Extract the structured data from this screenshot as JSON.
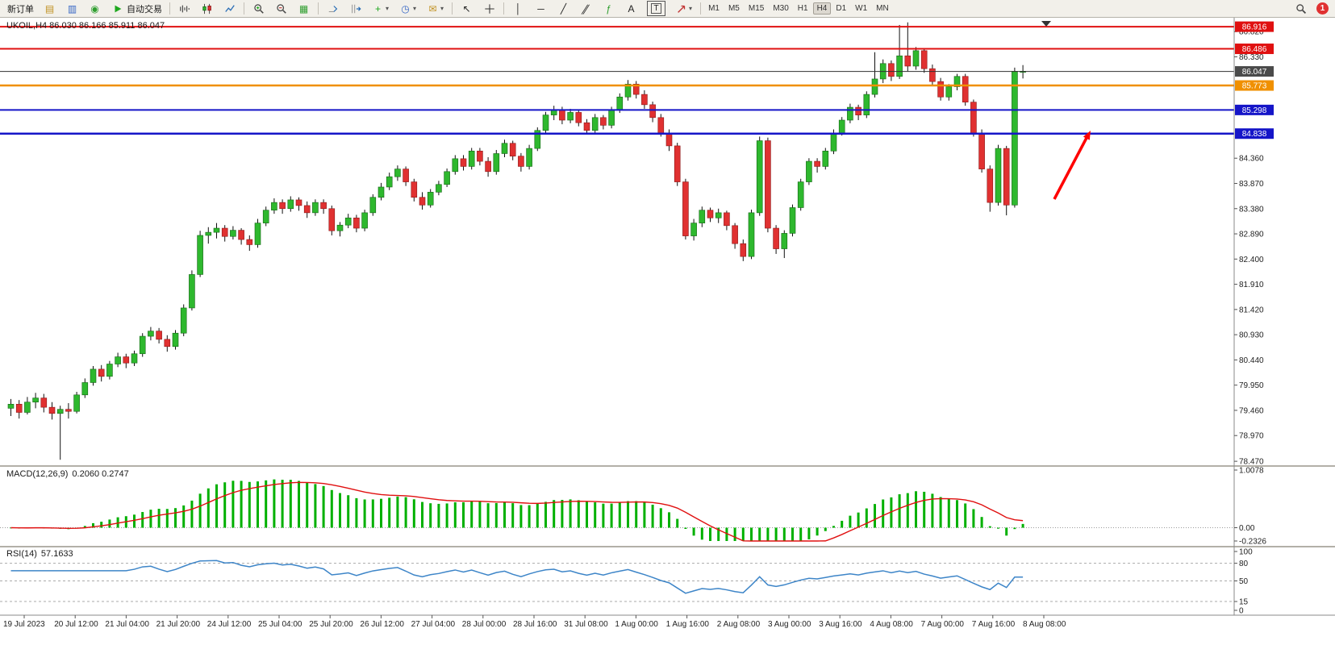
{
  "toolbar": {
    "items": [
      {
        "type": "button",
        "name": "new-order-button",
        "label": "新订单"
      },
      {
        "type": "glyph",
        "name": "open-chart-icon",
        "glyph": "▤",
        "color": "#c09020"
      },
      {
        "type": "glyph",
        "name": "market-watch-icon",
        "glyph": "▥",
        "color": "#3565c5"
      },
      {
        "type": "glyph",
        "name": "navigator-icon",
        "glyph": "◉",
        "color": "#2f9e2f"
      },
      {
        "type": "button",
        "name": "auto-trading-button",
        "label": "自动交易",
        "icon": "play"
      },
      {
        "type": "sep"
      },
      {
        "type": "svg",
        "name": "bar-chart-icon",
        "icon": "bars"
      },
      {
        "type": "svg",
        "name": "candlestick-chart-icon",
        "icon": "candles"
      },
      {
        "type": "svg",
        "name": "line-chart-icon",
        "icon": "linechart"
      },
      {
        "type": "sep"
      },
      {
        "type": "svg",
        "name": "zoom-in-icon",
        "icon": "zoomin"
      },
      {
        "type": "svg",
        "name": "zoom-out-icon",
        "icon": "zoomout"
      },
      {
        "type": "glyph",
        "name": "tile-windows-icon",
        "glyph": "▦",
        "color": "#2f9e2f"
      },
      {
        "type": "sep"
      },
      {
        "type": "svg",
        "name": "auto-scroll-icon",
        "icon": "autoscroll"
      },
      {
        "type": "svg",
        "name": "chart-shift-icon",
        "icon": "chartshift"
      },
      {
        "type": "glyph",
        "name": "add-indicator-icon",
        "glyph": "+",
        "color": "#1fa81f",
        "caret": true
      },
      {
        "type": "glyph",
        "name": "period-icon",
        "glyph": "◷",
        "color": "#3565c5",
        "caret": true
      },
      {
        "type": "glyph",
        "name": "template-icon",
        "glyph": "✉",
        "color": "#c09020",
        "caret": true
      },
      {
        "type": "sep"
      },
      {
        "type": "glyph",
        "name": "cursor-icon",
        "glyph": "↖",
        "color": "#222222"
      },
      {
        "type": "svg",
        "name": "crosshair-icon",
        "icon": "crosshair"
      },
      {
        "type": "sep"
      },
      {
        "type": "glyph",
        "name": "vertical-line-icon",
        "glyph": "│",
        "color": "#222222"
      },
      {
        "type": "glyph",
        "name": "horizontal-line-icon",
        "glyph": "─",
        "color": "#222222"
      },
      {
        "type": "glyph",
        "name": "trendline-icon",
        "glyph": "╱",
        "color": "#222222"
      },
      {
        "type": "glyph",
        "name": "channel-icon",
        "glyph": "∥",
        "color": "#222222"
      },
      {
        "type": "glyph",
        "name": "fibonacci-icon",
        "glyph": "ƒ",
        "color": "#2f9e2f"
      },
      {
        "type": "glyph",
        "name": "text-icon",
        "glyph": "A",
        "color": "#222222"
      },
      {
        "type": "label-box",
        "name": "label-icon",
        "glyph": "T",
        "color": "#222222"
      },
      {
        "type": "svg",
        "name": "arrows-tool-icon",
        "icon": "arrowtool",
        "caret": true
      },
      {
        "type": "sep"
      },
      {
        "type": "timeframes"
      },
      {
        "type": "spacer"
      },
      {
        "type": "svg",
        "name": "search-icon",
        "icon": "search"
      },
      {
        "type": "badge",
        "name": "notification-badge",
        "label": "1",
        "color": "#e03131"
      }
    ],
    "timeframes": [
      "M1",
      "M5",
      "M15",
      "M30",
      "H1",
      "H4",
      "D1",
      "W1",
      "MN"
    ],
    "active_timeframe": "H4"
  },
  "chart": {
    "title": "UKOIL,H4 86.030 86.166 85.911 86.047"
  },
  "panels": {
    "macd": {
      "name": "MACD(12,26,9)",
      "values": "0.2060 0.2747"
    },
    "rsi": {
      "name": "RSI(14)",
      "value": "57.1633"
    }
  },
  "chart_data": {
    "type": "candlestick",
    "symbol": "UKOIL",
    "timeframe": "H4",
    "ohlc_current": {
      "open": 86.03,
      "high": 86.166,
      "low": 85.911,
      "close": 86.047
    },
    "y_ticks": [
      "86.820",
      "86.330",
      "84.360",
      "83.870",
      "83.380",
      "82.890",
      "82.400",
      "81.910",
      "81.420",
      "80.930",
      "80.440",
      "79.950",
      "79.460",
      "78.970",
      "78.470"
    ],
    "hlines": [
      {
        "price": 86.916,
        "color": "#e01010",
        "width": 2,
        "badge": "#e01010"
      },
      {
        "price": 86.486,
        "color": "#e01010",
        "width": 2,
        "badge": "#e01010"
      },
      {
        "price": 86.047,
        "color": "#303030",
        "width": 1,
        "badge": "#4a4a4a"
      },
      {
        "price": 85.773,
        "color": "#f09000",
        "width": 2.5,
        "badge": "#f09000"
      },
      {
        "price": 85.298,
        "color": "#1515c8",
        "width": 2,
        "badge": "#1515c8"
      },
      {
        "price": 84.838,
        "color": "#1515c8",
        "width": 2.5,
        "badge": "#1515c8"
      }
    ],
    "x_labels": [
      "19 Jul 2023",
      "20 Jul 12:00",
      "21 Jul 04:00",
      "21 Jul 20:00",
      "24 Jul 12:00",
      "25 Jul 04:00",
      "25 Jul 20:00",
      "26 Jul 12:00",
      "27 Jul 04:00",
      "28 Jul 00:00",
      "28 Jul 16:00",
      "31 Jul 08:00",
      "1 Aug 00:00",
      "1 Aug 16:00",
      "2 Aug 08:00",
      "3 Aug 00:00",
      "3 Aug 16:00",
      "4 Aug 08:00",
      "7 Aug 00:00",
      "7 Aug 16:00",
      "8 Aug 08:00"
    ],
    "candles": [
      [
        79.5,
        79.68,
        79.35,
        79.58
      ],
      [
        79.58,
        79.66,
        79.3,
        79.42
      ],
      [
        79.42,
        79.72,
        79.38,
        79.62
      ],
      [
        79.62,
        79.8,
        79.5,
        79.7
      ],
      [
        79.7,
        79.78,
        79.42,
        79.52
      ],
      [
        79.52,
        79.62,
        79.28,
        79.4
      ],
      [
        79.4,
        79.55,
        78.5,
        79.48
      ],
      [
        79.48,
        79.6,
        79.3,
        79.44
      ],
      [
        79.44,
        79.82,
        79.4,
        79.76
      ],
      [
        79.76,
        80.08,
        79.7,
        80.0
      ],
      [
        80.0,
        80.32,
        79.94,
        80.26
      ],
      [
        80.26,
        80.34,
        80.02,
        80.12
      ],
      [
        80.12,
        80.42,
        80.06,
        80.36
      ],
      [
        80.36,
        80.58,
        80.3,
        80.5
      ],
      [
        80.5,
        80.56,
        80.28,
        80.38
      ],
      [
        80.38,
        80.62,
        80.32,
        80.56
      ],
      [
        80.56,
        80.96,
        80.5,
        80.9
      ],
      [
        80.9,
        81.08,
        80.82,
        81.0
      ],
      [
        81.0,
        81.06,
        80.76,
        80.84
      ],
      [
        80.84,
        80.92,
        80.6,
        80.7
      ],
      [
        80.7,
        81.02,
        80.64,
        80.96
      ],
      [
        80.96,
        81.52,
        80.9,
        81.45
      ],
      [
        81.45,
        82.18,
        81.4,
        82.1
      ],
      [
        82.1,
        82.95,
        82.05,
        82.86
      ],
      [
        82.86,
        83.02,
        82.7,
        82.92
      ],
      [
        82.92,
        83.1,
        82.8,
        83.0
      ],
      [
        83.0,
        83.06,
        82.74,
        82.84
      ],
      [
        82.84,
        83.04,
        82.78,
        82.96
      ],
      [
        82.96,
        83.0,
        82.68,
        82.78
      ],
      [
        82.78,
        82.86,
        82.56,
        82.68
      ],
      [
        82.68,
        83.18,
        82.62,
        83.1
      ],
      [
        83.1,
        83.42,
        83.04,
        83.35
      ],
      [
        83.35,
        83.58,
        83.28,
        83.5
      ],
      [
        83.5,
        83.56,
        83.28,
        83.38
      ],
      [
        83.38,
        83.62,
        83.32,
        83.55
      ],
      [
        83.55,
        83.6,
        83.34,
        83.44
      ],
      [
        83.44,
        83.52,
        83.2,
        83.3
      ],
      [
        83.3,
        83.56,
        83.24,
        83.5
      ],
      [
        83.5,
        83.56,
        83.28,
        83.38
      ],
      [
        83.38,
        83.44,
        82.86,
        82.95
      ],
      [
        82.95,
        83.12,
        82.84,
        83.06
      ],
      [
        83.06,
        83.28,
        83.0,
        83.2
      ],
      [
        83.2,
        83.26,
        82.92,
        83.0
      ],
      [
        83.0,
        83.36,
        82.94,
        83.3
      ],
      [
        83.3,
        83.66,
        83.24,
        83.6
      ],
      [
        83.6,
        83.88,
        83.54,
        83.8
      ],
      [
        83.8,
        84.08,
        83.74,
        84.0
      ],
      [
        84.0,
        84.22,
        83.92,
        84.15
      ],
      [
        84.15,
        84.2,
        83.82,
        83.9
      ],
      [
        83.9,
        83.96,
        83.52,
        83.6
      ],
      [
        83.6,
        83.7,
        83.36,
        83.45
      ],
      [
        83.45,
        83.76,
        83.4,
        83.7
      ],
      [
        83.7,
        83.92,
        83.64,
        83.85
      ],
      [
        83.85,
        84.16,
        83.8,
        84.1
      ],
      [
        84.1,
        84.42,
        84.04,
        84.35
      ],
      [
        84.35,
        84.42,
        84.12,
        84.2
      ],
      [
        84.2,
        84.56,
        84.14,
        84.5
      ],
      [
        84.5,
        84.56,
        84.22,
        84.3
      ],
      [
        84.3,
        84.38,
        84.0,
        84.1
      ],
      [
        84.1,
        84.52,
        84.04,
        84.45
      ],
      [
        84.45,
        84.72,
        84.38,
        84.65
      ],
      [
        84.65,
        84.7,
        84.32,
        84.4
      ],
      [
        84.4,
        84.46,
        84.1,
        84.2
      ],
      [
        84.2,
        84.62,
        84.14,
        84.55
      ],
      [
        84.55,
        84.96,
        84.5,
        84.9
      ],
      [
        84.9,
        85.26,
        84.84,
        85.2
      ],
      [
        85.2,
        85.38,
        85.1,
        85.3
      ],
      [
        85.3,
        85.36,
        85.02,
        85.1
      ],
      [
        85.1,
        85.32,
        85.04,
        85.25
      ],
      [
        85.25,
        85.3,
        84.98,
        85.05
      ],
      [
        85.05,
        85.12,
        84.82,
        84.9
      ],
      [
        84.9,
        85.22,
        84.84,
        85.15
      ],
      [
        85.15,
        85.2,
        84.92,
        85.0
      ],
      [
        85.0,
        85.36,
        84.94,
        85.3
      ],
      [
        85.3,
        85.62,
        85.24,
        85.55
      ],
      [
        85.55,
        85.88,
        85.48,
        85.8
      ],
      [
        85.8,
        85.86,
        85.52,
        85.6
      ],
      [
        85.6,
        85.68,
        85.32,
        85.4
      ],
      [
        85.4,
        85.46,
        85.06,
        85.15
      ],
      [
        85.15,
        85.22,
        84.78,
        84.85
      ],
      [
        84.85,
        84.92,
        84.5,
        84.6
      ],
      [
        84.6,
        84.66,
        83.82,
        83.9
      ],
      [
        83.9,
        83.96,
        82.78,
        82.85
      ],
      [
        82.85,
        83.18,
        82.76,
        83.1
      ],
      [
        83.1,
        83.42,
        83.02,
        83.35
      ],
      [
        83.35,
        83.4,
        83.12,
        83.2
      ],
      [
        83.2,
        83.38,
        83.1,
        83.3
      ],
      [
        83.3,
        83.34,
        82.96,
        83.05
      ],
      [
        83.05,
        83.1,
        82.6,
        82.7
      ],
      [
        82.7,
        82.78,
        82.36,
        82.45
      ],
      [
        82.45,
        83.36,
        82.4,
        83.3
      ],
      [
        83.3,
        84.78,
        83.24,
        84.7
      ],
      [
        84.7,
        84.76,
        82.92,
        83.0
      ],
      [
        83.0,
        83.06,
        82.5,
        82.6
      ],
      [
        82.6,
        82.96,
        82.42,
        82.9
      ],
      [
        82.9,
        83.46,
        82.84,
        83.4
      ],
      [
        83.4,
        83.96,
        83.34,
        83.9
      ],
      [
        83.9,
        84.36,
        83.84,
        84.3
      ],
      [
        84.3,
        84.36,
        84.08,
        84.2
      ],
      [
        84.2,
        84.56,
        84.14,
        84.5
      ],
      [
        84.5,
        84.92,
        84.44,
        84.85
      ],
      [
        84.85,
        85.16,
        84.8,
        85.1
      ],
      [
        85.1,
        85.42,
        85.04,
        85.35
      ],
      [
        85.35,
        85.4,
        85.1,
        85.2
      ],
      [
        85.2,
        85.66,
        85.14,
        85.6
      ],
      [
        85.6,
        86.42,
        85.54,
        85.9
      ],
      [
        85.9,
        86.28,
        85.82,
        86.2
      ],
      [
        86.2,
        86.26,
        85.86,
        85.95
      ],
      [
        85.95,
        86.95,
        85.9,
        86.35
      ],
      [
        86.35,
        87.0,
        86.05,
        86.15
      ],
      [
        86.15,
        86.52,
        86.08,
        86.45
      ],
      [
        86.45,
        86.5,
        86.02,
        86.1
      ],
      [
        86.1,
        86.18,
        85.78,
        85.85
      ],
      [
        85.85,
        85.92,
        85.48,
        85.55
      ],
      [
        85.55,
        85.8,
        85.48,
        85.75
      ],
      [
        85.75,
        86.0,
        85.68,
        85.95
      ],
      [
        85.95,
        86.0,
        85.38,
        85.45
      ],
      [
        85.45,
        85.5,
        84.78,
        84.85
      ],
      [
        84.85,
        84.92,
        84.08,
        84.15
      ],
      [
        84.15,
        84.22,
        83.32,
        83.5
      ],
      [
        83.5,
        84.62,
        83.44,
        84.55
      ],
      [
        84.55,
        84.6,
        83.25,
        83.45
      ],
      [
        83.45,
        86.12,
        83.4,
        86.05
      ],
      [
        86.03,
        86.17,
        85.91,
        86.05
      ]
    ],
    "indicators": [
      {
        "type": "MACD",
        "params": [
          12,
          26,
          9
        ],
        "main": 0.206,
        "signal": 0.2747,
        "axis": [
          "1.0078",
          "0.00",
          "-0.2326"
        ],
        "range": [
          -0.2326,
          1.0078
        ],
        "histogram_color": "#00b000",
        "signal_color": "#e01010"
      },
      {
        "type": "RSI",
        "params": [
          14
        ],
        "value": 57.1633,
        "axis": [
          "100",
          "80",
          "50",
          "15",
          "0"
        ],
        "dashed_levels": [
          80,
          50,
          15
        ],
        "range": [
          0,
          100
        ],
        "line_color": "#3d85c8"
      }
    ],
    "annotations": [
      {
        "type": "arrow",
        "color": "#ff0000",
        "direction": "up-right",
        "area": "right-of-last-candle"
      }
    ]
  }
}
